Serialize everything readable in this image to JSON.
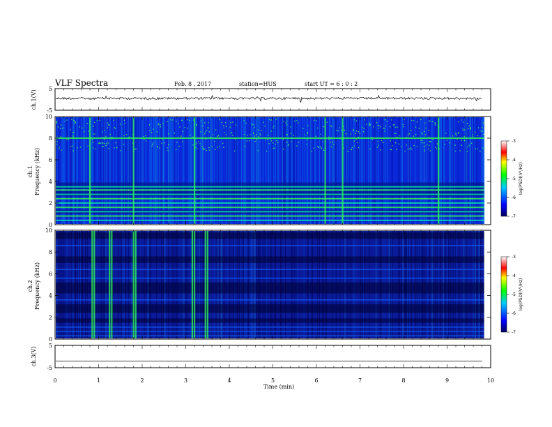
{
  "header": {
    "title": "VLF Spectra",
    "date": "Feb. 8 , 2017",
    "station": "station=HUS",
    "start_ut": "start  UT =  6 : 0  : 2"
  },
  "chart_data": [
    {
      "type": "line",
      "panel": "ch1-waveform",
      "ylabel": "ch.1(V)",
      "ylim": [
        -5,
        5
      ],
      "yticks": [
        5,
        -5
      ],
      "xlim": [
        0,
        10
      ],
      "x_end_min": 9.8,
      "level_v": 0.5
    },
    {
      "type": "heatmap",
      "panel": "ch1-spectrogram",
      "ylabel": [
        "ch.1",
        "Frequency  (kHz)"
      ],
      "ylim": [
        0,
        10
      ],
      "yticks": [
        0,
        2,
        4,
        6,
        8,
        10
      ],
      "xlim": [
        0,
        10
      ],
      "colorbar": {
        "label": "log(PSD)(V²/Hz)",
        "range": [
          -7,
          -3
        ],
        "ticks": [
          "-3",
          "-4",
          "-5",
          "-6",
          "-7"
        ]
      },
      "noise_bands_khz": [
        0.4,
        0.8,
        1.2,
        1.6,
        2.0,
        2.4,
        2.8,
        3.2,
        3.5,
        8.0
      ],
      "bursts_min": [
        0.8,
        1.8,
        3.2,
        6.2,
        6.6,
        8.8
      ]
    },
    {
      "type": "heatmap",
      "panel": "ch2-spectrogram",
      "ylabel": [
        "ch.2",
        "Frequency  (kHz)"
      ],
      "ylim": [
        0,
        10
      ],
      "yticks": [
        0,
        2,
        4,
        6,
        8,
        10
      ],
      "xlim": [
        0,
        10
      ],
      "colorbar": {
        "label": "log(PSD)(V²/Hz)",
        "range": [
          -7,
          -3
        ],
        "ticks": [
          "-3",
          "-4",
          "-5",
          "-6",
          "-7"
        ]
      },
      "bursts_min": [
        0.85,
        0.9,
        1.25,
        1.3,
        1.8,
        1.85,
        3.15,
        3.2,
        3.45,
        3.5
      ]
    },
    {
      "type": "line",
      "panel": "ch3-waveform",
      "ylabel": "ch.3(V)",
      "ylim": [
        -5,
        5
      ],
      "yticks": [
        5,
        -5
      ],
      "xlim": [
        0,
        10
      ],
      "xticks": [
        0,
        1,
        2,
        3,
        4,
        5,
        6,
        7,
        8,
        9,
        10
      ],
      "xlabel": "Time  (min)",
      "x_end_min": 9.8,
      "level_v": -2
    }
  ]
}
